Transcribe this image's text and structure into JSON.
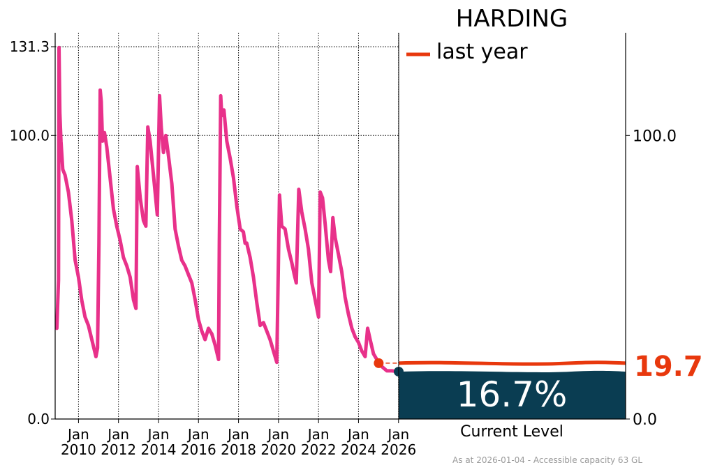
{
  "chart_data": {
    "type": "line",
    "title": "HARDING",
    "xlabel": "",
    "ylabel": "",
    "x_axis": {
      "type": "date",
      "range": [
        "2008-11-01",
        "2026-01-04"
      ],
      "ticks": [
        "2010-01-01",
        "2012-01-01",
        "2014-01-01",
        "2016-01-01",
        "2018-01-01",
        "2020-01-01",
        "2022-01-01",
        "2024-01-01",
        "2026-01-01"
      ],
      "tick_labels": [
        [
          "Jan",
          "2010"
        ],
        [
          "Jan",
          "2012"
        ],
        [
          "Jan",
          "2014"
        ],
        [
          "Jan",
          "2016"
        ],
        [
          "Jan",
          "2018"
        ],
        [
          "Jan",
          "2020"
        ],
        [
          "Jan",
          "2022"
        ],
        [
          "Jan",
          "2024"
        ],
        [
          "Jan",
          "2026"
        ]
      ]
    },
    "y_axis": {
      "range": [
        0,
        131.3
      ],
      "ticks": [
        0,
        100,
        131.3
      ],
      "tick_labels": [
        "0.0",
        "100.0",
        "131.3"
      ]
    },
    "right_axis": {
      "ticks": [
        0,
        100
      ],
      "tick_labels": [
        "0.0",
        "100.0"
      ]
    },
    "grid": true,
    "legend": {
      "placement": "top-right",
      "entries": [
        {
          "label": "last year",
          "color": "#e8380d"
        }
      ]
    },
    "series": [
      {
        "color": "#e8318a",
        "points": [
          [
            "2008-12-01",
            32
          ],
          [
            "2009-01-01",
            49
          ],
          [
            "2009-01-10",
            131
          ],
          [
            "2009-01-25",
            108
          ],
          [
            "2009-02-15",
            98
          ],
          [
            "2009-03-20",
            88
          ],
          [
            "2009-05-01",
            86
          ],
          [
            "2009-07-01",
            80
          ],
          [
            "2009-09-01",
            70
          ],
          [
            "2009-11-01",
            56
          ],
          [
            "2010-01-01",
            50
          ],
          [
            "2010-03-01",
            42
          ],
          [
            "2010-05-01",
            36
          ],
          [
            "2010-07-01",
            33
          ],
          [
            "2010-09-01",
            28
          ],
          [
            "2010-11-15",
            22
          ],
          [
            "2010-12-15",
            25
          ],
          [
            "2011-01-10",
            62
          ],
          [
            "2011-02-01",
            116
          ],
          [
            "2011-02-20",
            112
          ],
          [
            "2011-03-15",
            98
          ],
          [
            "2011-04-20",
            101
          ],
          [
            "2011-06-01",
            96
          ],
          [
            "2011-08-01",
            85
          ],
          [
            "2011-10-01",
            74
          ],
          [
            "2011-12-01",
            68
          ],
          [
            "2012-02-01",
            63
          ],
          [
            "2012-04-01",
            57
          ],
          [
            "2012-06-01",
            54
          ],
          [
            "2012-08-01",
            50
          ],
          [
            "2012-10-01",
            42
          ],
          [
            "2012-11-15",
            39
          ],
          [
            "2012-12-10",
            89
          ],
          [
            "2013-02-01",
            78
          ],
          [
            "2013-04-01",
            70
          ],
          [
            "2013-05-15",
            68
          ],
          [
            "2013-06-20",
            103
          ],
          [
            "2013-08-01",
            98
          ],
          [
            "2013-10-01",
            86
          ],
          [
            "2013-12-10",
            72
          ],
          [
            "2014-01-20",
            114
          ],
          [
            "2014-02-20",
            103
          ],
          [
            "2014-04-01",
            94
          ],
          [
            "2014-05-15",
            100
          ],
          [
            "2014-07-01",
            93
          ],
          [
            "2014-09-01",
            83
          ],
          [
            "2014-11-01",
            67
          ],
          [
            "2015-01-01",
            61
          ],
          [
            "2015-03-01",
            56
          ],
          [
            "2015-05-01",
            54
          ],
          [
            "2015-07-01",
            51
          ],
          [
            "2015-09-01",
            48
          ],
          [
            "2015-11-01",
            42
          ],
          [
            "2016-01-01",
            35
          ],
          [
            "2016-03-01",
            31
          ],
          [
            "2016-05-01",
            28
          ],
          [
            "2016-07-01",
            32
          ],
          [
            "2016-09-01",
            30
          ],
          [
            "2016-11-01",
            26
          ],
          [
            "2017-01-01",
            21
          ],
          [
            "2017-01-15",
            62
          ],
          [
            "2017-02-10",
            114
          ],
          [
            "2017-03-01",
            107
          ],
          [
            "2017-04-10",
            109
          ],
          [
            "2017-06-01",
            98
          ],
          [
            "2017-08-01",
            92
          ],
          [
            "2017-10-01",
            85
          ],
          [
            "2017-12-01",
            75
          ],
          [
            "2018-02-01",
            67
          ],
          [
            "2018-04-01",
            66
          ],
          [
            "2018-05-01",
            62
          ],
          [
            "2018-06-01",
            62
          ],
          [
            "2018-08-01",
            57
          ],
          [
            "2018-10-01",
            50
          ],
          [
            "2018-12-01",
            41
          ],
          [
            "2019-02-01",
            33
          ],
          [
            "2019-04-01",
            34
          ],
          [
            "2019-06-01",
            31
          ],
          [
            "2019-08-01",
            28
          ],
          [
            "2019-10-01",
            24
          ],
          [
            "2019-12-01",
            20
          ],
          [
            "2020-01-20",
            79
          ],
          [
            "2020-03-01",
            68
          ],
          [
            "2020-05-01",
            67
          ],
          [
            "2020-07-01",
            60
          ],
          [
            "2020-09-01",
            55
          ],
          [
            "2020-10-15",
            51
          ],
          [
            "2020-11-20",
            48
          ],
          [
            "2021-01-05",
            81
          ],
          [
            "2021-03-01",
            73
          ],
          [
            "2021-05-01",
            67
          ],
          [
            "2021-07-01",
            60
          ],
          [
            "2021-09-01",
            48
          ],
          [
            "2021-11-01",
            42
          ],
          [
            "2022-01-01",
            36
          ],
          [
            "2022-02-01",
            80
          ],
          [
            "2022-03-15",
            78
          ],
          [
            "2022-05-01",
            69
          ],
          [
            "2022-07-01",
            56
          ],
          [
            "2022-08-10",
            52
          ],
          [
            "2022-09-20",
            71
          ],
          [
            "2022-11-01",
            64
          ],
          [
            "2023-01-01",
            58
          ],
          [
            "2023-03-01",
            52
          ],
          [
            "2023-05-01",
            43
          ],
          [
            "2023-07-01",
            37
          ],
          [
            "2023-09-01",
            32
          ],
          [
            "2023-11-01",
            29
          ],
          [
            "2024-01-01",
            27
          ],
          [
            "2024-03-01",
            24
          ],
          [
            "2024-05-01",
            22
          ],
          [
            "2024-06-15",
            32
          ],
          [
            "2024-08-01",
            28
          ],
          [
            "2024-10-01",
            23
          ],
          [
            "2024-12-01",
            21
          ],
          [
            "2025-02-01",
            19
          ],
          [
            "2025-04-01",
            18
          ],
          [
            "2025-06-01",
            17
          ],
          [
            "2025-09-01",
            17
          ],
          [
            "2025-12-01",
            16.8
          ],
          [
            "2026-01-04",
            16.7
          ]
        ]
      }
    ],
    "last_year": {
      "date": "2025-01-04",
      "value": 19.7,
      "label": "19.7",
      "color": "#e8380d"
    },
    "current": {
      "value": 16.7,
      "label": "16.7%",
      "caption": "Current Level",
      "color": "#0a3d52"
    },
    "colors": {
      "line": "#e8318a",
      "last_year": "#e8380d",
      "fill": "#0a3d52",
      "marker": "#0a3d52"
    },
    "footer": "As at 2026-01-04 - Accessible capacity 63 GL"
  }
}
